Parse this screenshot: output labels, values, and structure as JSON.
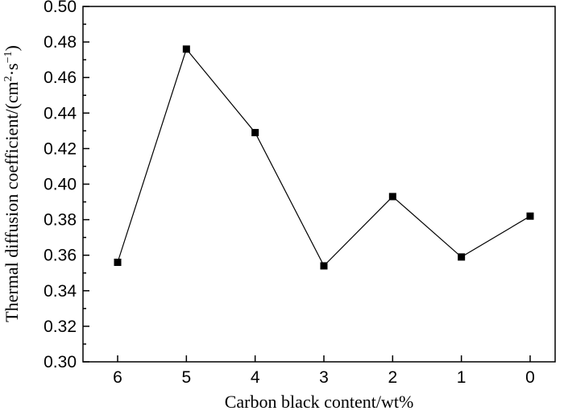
{
  "chart_data": {
    "type": "line",
    "title": "",
    "xlabel": "Carbon black content/wt%",
    "ylabel_main": "Thermal diffusion coefficient/(cm",
    "ylabel_sup1": "2",
    "ylabel_mid": "·s",
    "ylabel_sup2": "−1",
    "ylabel_end": ")",
    "categories": [
      "6",
      "5",
      "4",
      "3",
      "2",
      "1",
      "0"
    ],
    "series": [
      {
        "values": [
          0.356,
          0.476,
          0.429,
          0.354,
          0.393,
          0.359,
          0.382
        ]
      }
    ],
    "ylim": [
      0.3,
      0.5
    ],
    "yticks": [
      "0.30",
      "0.32",
      "0.34",
      "0.36",
      "0.38",
      "0.40",
      "0.42",
      "0.44",
      "0.46",
      "0.48",
      "0.50"
    ],
    "grid": false,
    "marker": "square",
    "color": "#000000"
  }
}
